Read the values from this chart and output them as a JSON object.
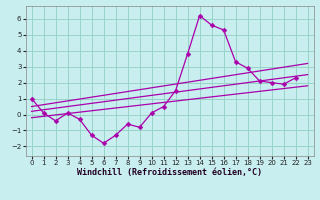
{
  "xlabel": "Windchill (Refroidissement éolien,°C)",
  "background_color": "#c8eef0",
  "grid_color": "#98d4c8",
  "line_color": "#aa00aa",
  "xlim": [
    -0.5,
    23.5
  ],
  "ylim": [
    -2.6,
    6.8
  ],
  "xticks": [
    0,
    1,
    2,
    3,
    4,
    5,
    6,
    7,
    8,
    9,
    10,
    11,
    12,
    13,
    14,
    15,
    16,
    17,
    18,
    19,
    20,
    21,
    22,
    23
  ],
  "yticks": [
    -2,
    -1,
    0,
    1,
    2,
    3,
    4,
    5,
    6
  ],
  "series1_x": [
    0,
    1,
    2,
    3,
    4,
    5,
    6,
    7,
    8,
    9,
    10,
    11,
    12,
    13,
    14,
    15,
    16,
    17,
    18,
    19,
    20,
    21,
    22
  ],
  "series1_y": [
    1.0,
    0.1,
    -0.4,
    0.1,
    -0.3,
    -1.3,
    -1.8,
    -1.3,
    -0.6,
    -0.8,
    0.1,
    0.5,
    1.5,
    3.8,
    6.2,
    5.6,
    5.3,
    3.3,
    2.9,
    2.1,
    2.0,
    1.9,
    2.3
  ],
  "line1_x": [
    0,
    23
  ],
  "line1_y": [
    0.5,
    3.2
  ],
  "line2_x": [
    0,
    23
  ],
  "line2_y": [
    0.2,
    2.5
  ],
  "line3_x": [
    0,
    23
  ],
  "line3_y": [
    -0.2,
    1.8
  ],
  "marker_size": 2.5,
  "line_width": 0.9,
  "tick_fontsize": 5.0,
  "xlabel_fontsize": 6.0
}
